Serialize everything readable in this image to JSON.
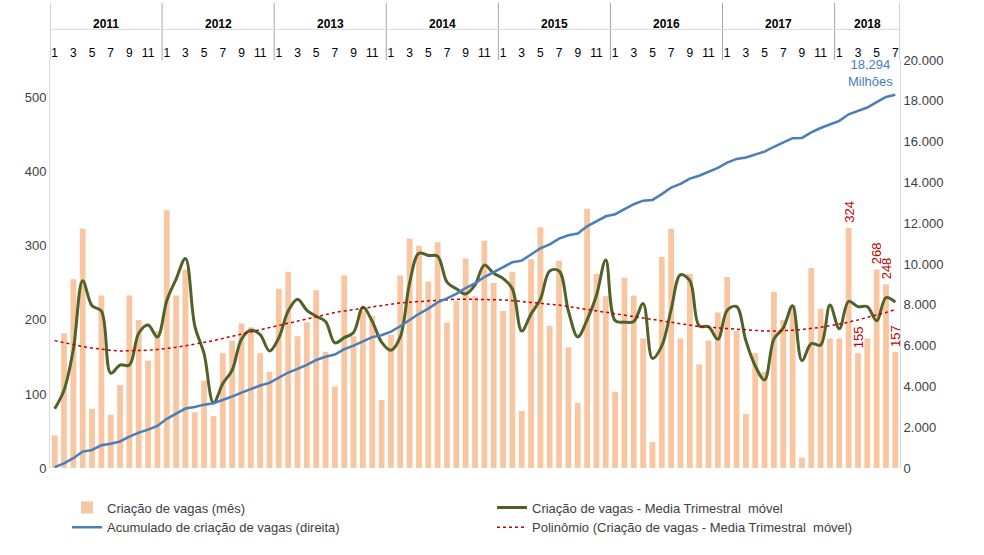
{
  "chart_data": {
    "type": "bar",
    "categories": [
      "1",
      null,
      "3",
      null,
      "5",
      null,
      "7",
      null,
      "9",
      null,
      "11",
      null,
      "1",
      null,
      "3",
      null,
      "5",
      null,
      "7",
      null,
      "9",
      null,
      "11",
      null,
      "1",
      null,
      "3",
      null,
      "5",
      null,
      "7",
      null,
      "9",
      null,
      "11",
      null,
      "1",
      null,
      "3",
      null,
      "5",
      null,
      "7",
      null,
      "9",
      null,
      "11",
      null,
      "1",
      null,
      "3",
      null,
      "5",
      null,
      "7",
      null,
      "9",
      null,
      "11",
      null,
      "1",
      null,
      "3",
      null,
      "5",
      null,
      "7",
      null,
      "9",
      null,
      "11",
      null,
      "1",
      null,
      "3",
      null,
      "5",
      null,
      "7",
      null,
      "9",
      null,
      "11",
      null,
      "1",
      null,
      "3",
      null,
      "5",
      null,
      "7"
    ],
    "x_groups": [
      {
        "label": "2011",
        "from": 0,
        "to": 11
      },
      {
        "label": "2012",
        "from": 12,
        "to": 23
      },
      {
        "label": "2013",
        "from": 24,
        "to": 35
      },
      {
        "label": "2014",
        "from": 36,
        "to": 47
      },
      {
        "label": "2015",
        "from": 48,
        "to": 59
      },
      {
        "label": "2016",
        "from": 60,
        "to": 71
      },
      {
        "label": "2017",
        "from": 72,
        "to": 83
      },
      {
        "label": "2018",
        "from": 84,
        "to": 90
      }
    ],
    "series": [
      {
        "name": "Criação de vagas (mês)",
        "type": "bar",
        "color": "#f8c6a0",
        "values": [
          44,
          182,
          255,
          323,
          80,
          233,
          72,
          112,
          233,
          200,
          145,
          185,
          348,
          233,
          268,
          75,
          118,
          70,
          155,
          172,
          195,
          190,
          155,
          130,
          242,
          265,
          178,
          197,
          240,
          157,
          110,
          260,
          178,
          212,
          205,
          92,
          180,
          260,
          310,
          300,
          252,
          305,
          196,
          226,
          283,
          232,
          307,
          250,
          212,
          265,
          77,
          282,
          325,
          192,
          280,
          163,
          88,
          350,
          262,
          232,
          103,
          257,
          233,
          175,
          35,
          285,
          323,
          175,
          262,
          140,
          172,
          210,
          258,
          185,
          73,
          155,
          130,
          238,
          200,
          220,
          14,
          270,
          215,
          175,
          175,
          324,
          155,
          175,
          268,
          248,
          157
        ]
      },
      {
        "name": "Criação de vagas - Media Trimestral  móvel",
        "type": "line",
        "color": "#4f6228",
        "line_style": "solid",
        "values": [
          80,
          105,
          160,
          253,
          219,
          212,
          128,
          139,
          139,
          182,
          193,
          177,
          226,
          255,
          283,
          192,
          154,
          88,
          114,
          132,
          174,
          186,
          180,
          158,
          176,
          212,
          228,
          213,
          205,
          198,
          169,
          176,
          183,
          217,
          198,
          170,
          159,
          177,
          250,
          290,
          287,
          286,
          251,
          242,
          235,
          247,
          274,
          263,
          256,
          242,
          185,
          208,
          228,
          266,
          266,
          212,
          177,
          200,
          233,
          281,
          199,
          197,
          198,
          222,
          148,
          165,
          214,
          261,
          253,
          192,
          191,
          174,
          213,
          218,
          172,
          138,
          119,
          174,
          189,
          219,
          145,
          168,
          166,
          220,
          188,
          225,
          218,
          218,
          199,
          230,
          224
        ]
      },
      {
        "name": "Acumulado de criação de vagas (direita)",
        "type": "line",
        "color": "#4a7ebb",
        "line_style": "solid",
        "axis": "y2",
        "values": [
          44,
          226,
          481,
          804,
          884,
          1117,
          1189,
          1301,
          1534,
          1734,
          1879,
          2064,
          2412,
          2645,
          2913,
          2988,
          3106,
          3176,
          3331,
          3503,
          3698,
          3888,
          4043,
          4173,
          4415,
          4680,
          4858,
          5055,
          5295,
          5452,
          5562,
          5822,
          6000,
          6212,
          6417,
          6509,
          6689,
          6949,
          7259,
          7559,
          7811,
          8116,
          8312,
          8538,
          8821,
          9053,
          9360,
          9610,
          9822,
          10087,
          10164,
          10446,
          10771,
          10963,
          11243,
          11406,
          11494,
          11844,
          12106,
          12338,
          12441,
          12698,
          12931,
          13106,
          13141,
          13426,
          13749,
          13924,
          14186,
          14326,
          14498,
          14708,
          14966,
          15151,
          15224,
          15379,
          15509,
          15747,
          15947,
          16167,
          16181,
          16451,
          16666,
          16841,
          17016,
          17340,
          17495,
          17670,
          17938,
          18186,
          18294
        ]
      },
      {
        "name": "Polinômio (Criação de vagas - Media Trimestral  móvel)",
        "type": "line",
        "color": "#c00000",
        "line_style": "dotted",
        "values": [
          172,
          169,
          166,
          164,
          162,
          160,
          159,
          158,
          158,
          158,
          159,
          160,
          161,
          163,
          165,
          167,
          170,
          172,
          175,
          178,
          181,
          184,
          187,
          190,
          193,
          196,
          199,
          202,
          205,
          207,
          210,
          212,
          214,
          216,
          218,
          220,
          222,
          223,
          224,
          225,
          226,
          227,
          227,
          228,
          228,
          228,
          228,
          227,
          227,
          226,
          225,
          224,
          223,
          221,
          220,
          218,
          216,
          214,
          212,
          210,
          208,
          206,
          204,
          202,
          200,
          198,
          196,
          194,
          193,
          191,
          190,
          189,
          188,
          187,
          186,
          186,
          185,
          185,
          185,
          186,
          187,
          188,
          190,
          192,
          194,
          197,
          200,
          203,
          206,
          210,
          214
        ]
      }
    ],
    "ylim": [
      0,
      551
    ],
    "yticks": [
      0,
      100,
      200,
      300,
      400,
      500
    ],
    "y2lim": [
      0,
      20000
    ],
    "y2ticks": [
      0,
      {
        "value": 2000,
        "label": "2.000"
      },
      {
        "value": 4000,
        "label": "4.000"
      },
      {
        "value": 6000,
        "label": "6.000"
      },
      {
        "value": 8000,
        "label": "8.000"
      },
      {
        "value": 10000,
        "label": "10.000"
      },
      {
        "value": 12000,
        "label": "12.000"
      },
      {
        "value": 14000,
        "label": "14.000"
      },
      {
        "value": 16000,
        "label": "16.000"
      },
      {
        "value": 18000,
        "label": "18.000"
      },
      {
        "value": 20000,
        "label": "20.000"
      }
    ],
    "grid": false,
    "legend": "bottom",
    "annotations": [
      {
        "text": "18,294\nMilhões",
        "x": 90,
        "y": 18294,
        "axis": "y2",
        "color": "#4a7ebb"
      },
      {
        "text": "324",
        "x": 85,
        "y": 324,
        "color": "#c00000"
      },
      {
        "text": "155",
        "x": 86,
        "y": 155,
        "color": "#c00000"
      },
      {
        "text": "268",
        "x": 88,
        "y": 268,
        "color": "#c00000"
      },
      {
        "text": "248",
        "x": 89,
        "y": 248,
        "color": "#c00000"
      },
      {
        "text": "157",
        "x": 90,
        "y": 157,
        "color": "#c00000"
      }
    ]
  }
}
